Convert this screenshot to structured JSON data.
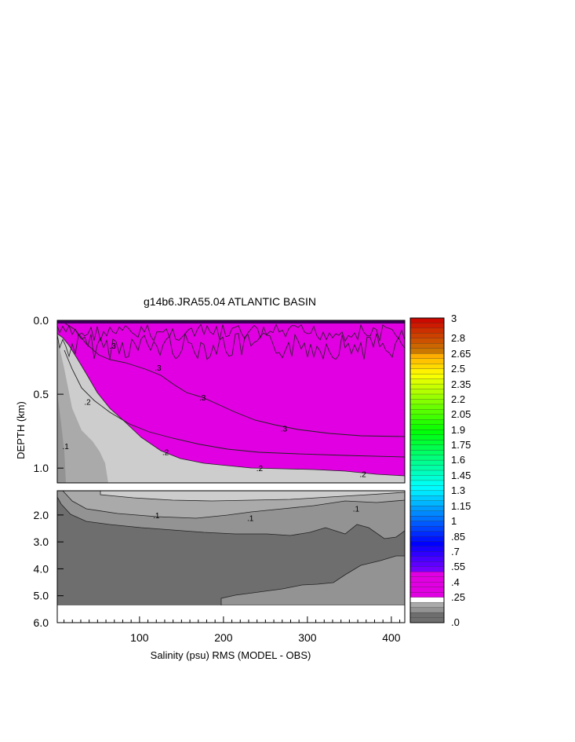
{
  "chart_data": {
    "type": "heatmap",
    "title": "g14b6.JRA55.04 ATLANTIC BASIN",
    "xlabel": "Salinity (psu) RMS (MODEL - OBS)",
    "ylabel": "DEPTH (km)",
    "xlim": [
      2,
      416
    ],
    "upper_panel": {
      "ylim": [
        0.0,
        1.1
      ],
      "yticks": [
        "0.0",
        "0.5",
        "1.0"
      ]
    },
    "lower_panel": {
      "ylim": [
        1.1,
        6.0
      ],
      "yticks": [
        "2.0",
        "3.0",
        "4.0",
        "5.0",
        "6.0"
      ]
    },
    "xticks": [
      "100",
      "200",
      "300",
      "400"
    ],
    "xtick_values": [
      100,
      200,
      300,
      400
    ],
    "colorbar": {
      "labels": [
        "3",
        "2.8",
        "2.65",
        "2.5",
        "2.35",
        "2.2",
        "2.05",
        "1.9",
        "1.75",
        "1.6",
        "1.45",
        "1.3",
        "1.15",
        "1",
        ".85",
        ".7",
        ".55",
        ".4",
        ".25",
        ".0"
      ],
      "min": 0.0,
      "max": 3.0
    },
    "contour_labels": [
      {
        "text": ".3",
        "x": 68,
        "depth": 0.17
      },
      {
        "text": ".3",
        "x": 122,
        "depth": 0.32
      },
      {
        "text": ".3",
        "x": 175,
        "depth": 0.52
      },
      {
        "text": ".3",
        "x": 272,
        "depth": 0.73
      },
      {
        "text": ".2",
        "x": 38,
        "depth": 0.55
      },
      {
        "text": ".2",
        "x": 131,
        "depth": 0.89
      },
      {
        "text": ".2",
        "x": 243,
        "depth": 1.0
      },
      {
        "text": ".2",
        "x": 366,
        "depth": 1.04
      },
      {
        "text": ".1",
        "x": 12,
        "depth": 0.85
      },
      {
        "text": ".1",
        "x": 120,
        "depth": 2.0
      },
      {
        "text": ".1",
        "x": 232,
        "depth": 2.1
      },
      {
        "text": ".1",
        "x": 358,
        "depth": 1.75
      }
    ],
    "colors": {
      "magenta": "#e100e1",
      "light_gray": "#cdcdcd",
      "mid_gray": "#aaaaaa",
      "gray": "#939393",
      "dark_gray": "#6e6e6e"
    }
  }
}
